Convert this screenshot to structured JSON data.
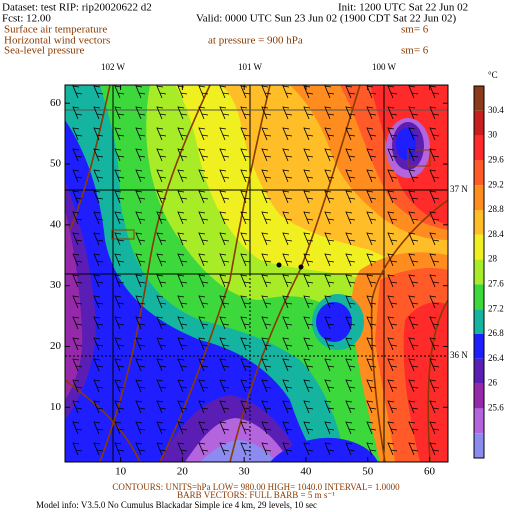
{
  "header": {
    "dataset": "Dataset: test  RIP: rip20020622 d2",
    "init": "Init: 1200 UTC Sat 22 Jun 02",
    "fcst": "Fcst:    12.00",
    "valid": "Valid: 0000 UTC Sun 23 Jun 02 (1900 CDT Sat 22 Jun 02)",
    "field1": "Surface air temperature",
    "field1_sm": "sm= 6",
    "field2": "Horizontal wind vectors",
    "field2_level": "at pressure =  900 hPa",
    "field3": "Sea-level pressure",
    "field3_sm": "sm= 6"
  },
  "map": {
    "xlim": [
      1,
      63
    ],
    "ylim": [
      1,
      63
    ],
    "xticks": [
      10,
      20,
      30,
      40,
      50,
      60
    ],
    "yticks": [
      10,
      20,
      30,
      40,
      50,
      60
    ],
    "longitudes": [
      "102 W",
      "101 W",
      "100 W"
    ],
    "latitudes": [
      "37 N",
      "36 N"
    ]
  },
  "colorbar": {
    "unit": "°C",
    "labels": [
      30.4,
      30,
      29.6,
      29.2,
      28.8,
      28.4,
      28,
      27.6,
      27.2,
      26.8,
      26.4,
      26,
      25.6
    ],
    "colors": [
      "#8b3a1a",
      "#c81e1e",
      "#ff2a2a",
      "#ff5a28",
      "#ff8c1e",
      "#ffbe28",
      "#f0f020",
      "#a8ec28",
      "#3cd83c",
      "#14b4a0",
      "#1e1eff",
      "#5a1eb4",
      "#9628aa",
      "#b464dc",
      "#8c8cf0"
    ]
  },
  "footer": {
    "contours": "CONTOURS: UNITS=hPa  LOW=  980.00   HIGH=  1040.0   INTERVAL=   1.0000",
    "barbs": "BARB VECTORS:  FULL BARB = 5 m s⁻¹",
    "model": "Model info: V3.5.0 No Cumulus Blackadar  Simple ice    4 km,  29 levels,   10 sec"
  }
}
